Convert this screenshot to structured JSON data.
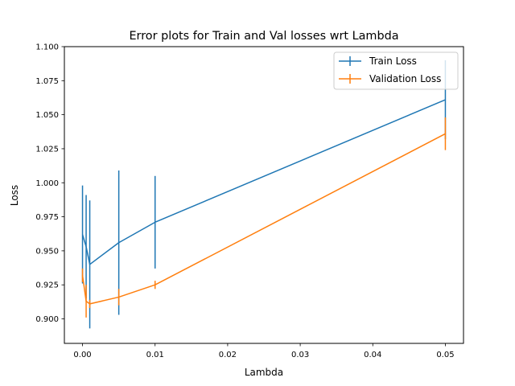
{
  "chart_data": {
    "type": "line",
    "title": "Error plots for Train and Val losses wrt Lambda",
    "xlabel": "Lambda",
    "ylabel": "Loss",
    "xlim": [
      -0.0025,
      0.0525
    ],
    "ylim": [
      0.882,
      1.1
    ],
    "x_ticks": [
      0.0,
      0.01,
      0.02,
      0.03,
      0.04,
      0.05
    ],
    "x_tick_labels": [
      "0.00",
      "0.01",
      "0.02",
      "0.03",
      "0.04",
      "0.05"
    ],
    "y_ticks": [
      0.9,
      0.925,
      0.95,
      0.975,
      1.0,
      1.025,
      1.05,
      1.075,
      1.1
    ],
    "y_tick_labels": [
      "0.900",
      "0.925",
      "0.950",
      "0.975",
      "1.000",
      "1.025",
      "1.050",
      "1.075",
      "1.100"
    ],
    "grid": false,
    "legend_position": "top-right",
    "x": [
      0.0,
      0.0005,
      0.001,
      0.005,
      0.01,
      0.05
    ],
    "series": [
      {
        "name": "Train Loss",
        "color": "#1f77b4",
        "values": [
          0.962,
          0.953,
          0.94,
          0.956,
          0.971,
          1.061
        ],
        "errors": [
          0.036,
          0.038,
          0.047,
          0.053,
          0.034,
          0.029
        ]
      },
      {
        "name": "Validation Loss",
        "color": "#ff7f0e",
        "values": [
          0.932,
          0.913,
          0.911,
          0.916,
          0.925,
          1.036
        ],
        "errors": [
          0.005,
          0.012,
          0.003,
          0.006,
          0.003,
          0.012
        ]
      }
    ]
  }
}
